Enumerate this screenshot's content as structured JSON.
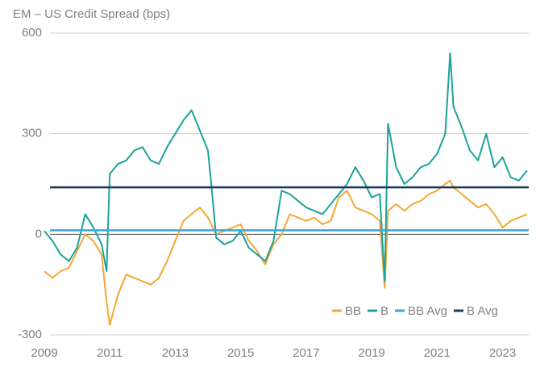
{
  "chart_data": {
    "type": "line",
    "title": "EM – US Credit Spread (bps)",
    "x": [
      2009.0,
      2009.25,
      2009.5,
      2009.75,
      2010.0,
      2010.25,
      2010.5,
      2010.75,
      2010.9,
      2011.0,
      2011.25,
      2011.5,
      2011.75,
      2012.0,
      2012.25,
      2012.5,
      2012.75,
      2013.0,
      2013.25,
      2013.5,
      2013.75,
      2014.0,
      2014.1,
      2014.25,
      2014.5,
      2014.75,
      2015.0,
      2015.25,
      2015.5,
      2015.75,
      2016.0,
      2016.25,
      2016.5,
      2016.75,
      2017.0,
      2017.25,
      2017.5,
      2017.75,
      2018.0,
      2018.25,
      2018.5,
      2018.75,
      2019.0,
      2019.25,
      2019.4,
      2019.5,
      2019.75,
      2020.0,
      2020.25,
      2020.5,
      2020.75,
      2021.0,
      2021.25,
      2021.4,
      2021.5,
      2021.75,
      2022.0,
      2022.25,
      2022.5,
      2022.75,
      2023.0,
      2023.25,
      2023.5,
      2023.75
    ],
    "series": [
      {
        "name": "BB",
        "color": "#f5a733",
        "values": [
          -110,
          -130,
          -110,
          -100,
          -50,
          0,
          -20,
          -60,
          -200,
          -270,
          -180,
          -120,
          -130,
          -140,
          -150,
          -130,
          -80,
          -20,
          40,
          60,
          80,
          50,
          30,
          0,
          10,
          20,
          30,
          -20,
          -50,
          -90,
          -30,
          0,
          60,
          50,
          40,
          50,
          30,
          40,
          110,
          130,
          80,
          70,
          60,
          40,
          -160,
          70,
          90,
          70,
          90,
          100,
          120,
          130,
          150,
          160,
          140,
          120,
          100,
          80,
          90,
          60,
          20,
          40,
          50,
          60
        ]
      },
      {
        "name": "B",
        "color": "#1ba39c",
        "values": [
          10,
          -20,
          -60,
          -80,
          -40,
          60,
          20,
          -30,
          -110,
          180,
          210,
          220,
          250,
          260,
          220,
          210,
          260,
          300,
          340,
          370,
          310,
          250,
          150,
          -10,
          -30,
          -20,
          10,
          -40,
          -60,
          -80,
          -20,
          130,
          120,
          100,
          80,
          70,
          60,
          90,
          120,
          150,
          200,
          160,
          110,
          120,
          -140,
          330,
          200,
          150,
          170,
          200,
          210,
          240,
          300,
          540,
          380,
          320,
          250,
          220,
          300,
          200,
          230,
          170,
          160,
          190
        ]
      }
    ],
    "avg_lines": [
      {
        "name": "BB Avg",
        "color": "#3da5d9",
        "value": 12
      },
      {
        "name": "B Avg",
        "color": "#1b3a5c",
        "value": 140
      }
    ],
    "xlim": [
      2009,
      2023.8
    ],
    "xticks": [
      2009,
      2011,
      2013,
      2015,
      2017,
      2019,
      2021,
      2023
    ],
    "ylim": [
      -300,
      600
    ],
    "yticks": [
      -300,
      0,
      300,
      600
    ],
    "grid": true
  }
}
